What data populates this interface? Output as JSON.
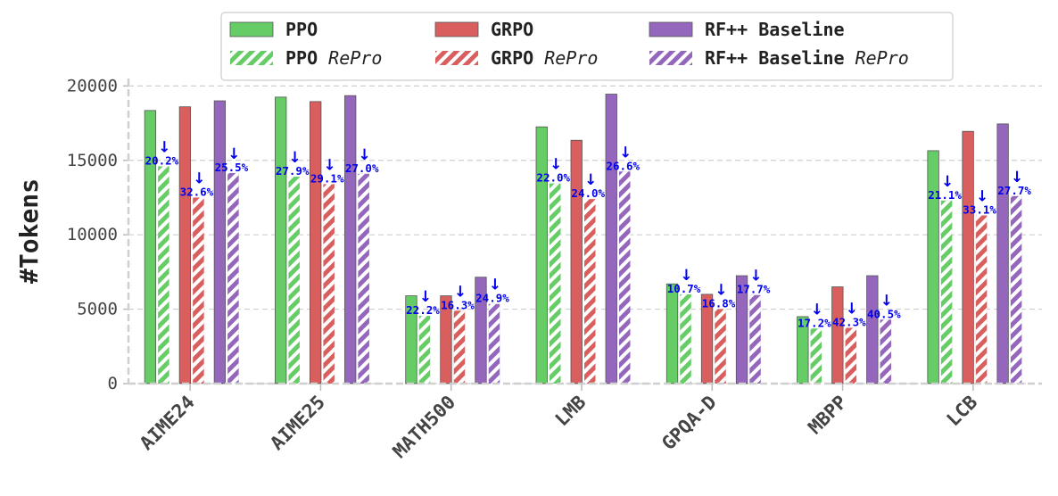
{
  "chart_data": {
    "type": "bar",
    "title": "",
    "xlabel": "",
    "ylabel": "#Tokens",
    "ylim": [
      0,
      20500
    ],
    "yticks": [
      0,
      5000,
      10000,
      15000,
      20000
    ],
    "categories": [
      "AIME24",
      "AIME25",
      "MATH500",
      "LMB",
      "GPQA-D",
      "MBPP",
      "LCB"
    ],
    "series": [
      {
        "name": "PPO",
        "color": "#66cc66",
        "hatched": false,
        "values": [
          18350,
          19250,
          5900,
          17250,
          6700,
          4500,
          15650
        ]
      },
      {
        "name": "PPO RePro",
        "color": "#66cc66",
        "hatched": true,
        "values": [
          14600,
          13900,
          4550,
          13450,
          6000,
          3700,
          12300
        ]
      },
      {
        "name": "GRPO",
        "color": "#d95f5f",
        "hatched": false,
        "values": [
          18600,
          18950,
          5900,
          16350,
          6000,
          6500,
          16950
        ]
      },
      {
        "name": "GRPO RePro",
        "color": "#d95f5f",
        "hatched": true,
        "values": [
          12500,
          13400,
          4900,
          12400,
          5000,
          3750,
          11300
        ]
      },
      {
        "name": "RF++ Baseline",
        "color": "#9467bd",
        "hatched": false,
        "values": [
          19000,
          19350,
          7150,
          19450,
          7250,
          7250,
          17450
        ]
      },
      {
        "name": "RF++ Baseline RePro",
        "color": "#9467bd",
        "hatched": true,
        "values": [
          14150,
          14100,
          5350,
          14250,
          5950,
          4300,
          12600
        ]
      }
    ],
    "reductions": {
      "PPO": [
        "20.2%",
        "27.9%",
        "22.2%",
        "22.0%",
        "10.7%",
        "17.2%",
        "21.1%"
      ],
      "GRPO": [
        "32.6%",
        "29.1%",
        "16.3%",
        "24.0%",
        "16.8%",
        "42.3%",
        "33.1%"
      ],
      "RF++ Baseline": [
        "25.5%",
        "27.0%",
        "24.9%",
        "26.6%",
        "17.7%",
        "40.5%",
        "27.7%"
      ]
    },
    "arrow_symbol": "↓",
    "legend": {
      "position": "top-center",
      "entries": [
        {
          "label": "PPO",
          "italic_suffix": ""
        },
        {
          "label": "GRPO",
          "italic_suffix": ""
        },
        {
          "label": "RF++ Baseline",
          "italic_suffix": ""
        },
        {
          "label": "PPO",
          "italic_suffix": "RePro"
        },
        {
          "label": "GRPO",
          "italic_suffix": "RePro"
        },
        {
          "label": "RF++ Baseline",
          "italic_suffix": "RePro"
        }
      ]
    },
    "grid": true
  }
}
